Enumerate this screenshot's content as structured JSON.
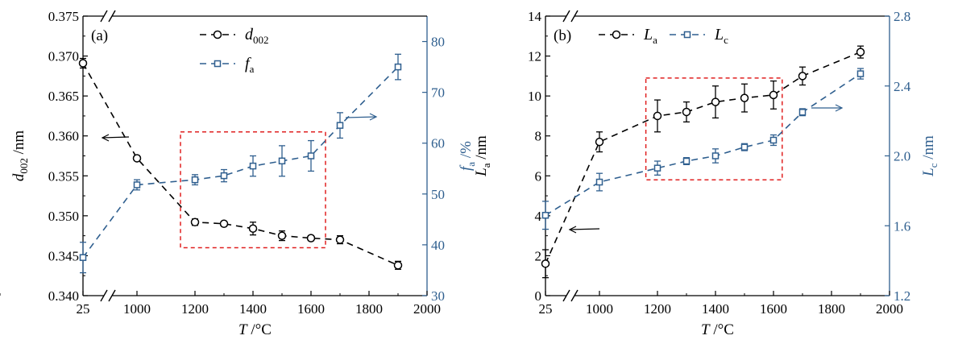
{
  "colors": {
    "left": "#000000",
    "right": "#2f5f8f",
    "box": "#e02020"
  },
  "chart_data": [
    {
      "type": "line",
      "panel_label": "(a)",
      "xlabel": {
        "italic": "T",
        "rest": " /°C"
      },
      "ylabel_left": {
        "italic": "d",
        "sub": "002",
        "rest": " /nm"
      },
      "ylabel_right": {
        "italic": "f",
        "sub": "a",
        "rest": " /%"
      },
      "x_ticks": [
        "25",
        "1000",
        "1200",
        "1400",
        "1600",
        "1800",
        "2000"
      ],
      "y_left_ticks": [
        "0.340",
        "0.345",
        "0.350",
        "0.355",
        "0.360",
        "0.365",
        "0.370",
        "0.375"
      ],
      "y_right_ticks": [
        "30",
        "40",
        "50",
        "60",
        "70",
        "80"
      ],
      "ylim_left": [
        0.34,
        0.375
      ],
      "ylim_right": [
        30,
        85
      ],
      "axis_break": true,
      "legend_position": "top-center",
      "series": [
        {
          "name": {
            "italic": "d",
            "sub": "002"
          },
          "axis": "left",
          "marker": "circle",
          "x": [
            25,
            1000,
            1200,
            1300,
            1400,
            1500,
            1600,
            1700,
            1900
          ],
          "y": [
            0.3691,
            0.3572,
            0.3492,
            0.349,
            0.3484,
            0.3475,
            0.3472,
            0.347,
            0.3438
          ],
          "err": [
            0.0006,
            0.0003,
            0.0004,
            0.0003,
            0.0008,
            0.0006,
            0.0003,
            0.0005,
            0.0005
          ]
        },
        {
          "name": {
            "italic": "f",
            "sub": "a"
          },
          "axis": "right",
          "marker": "square",
          "x": [
            25,
            1000,
            1200,
            1300,
            1400,
            1500,
            1600,
            1700,
            1900
          ],
          "y": [
            37.5,
            51.8,
            52.8,
            53.6,
            55.5,
            56.5,
            57.5,
            63.5,
            75.0
          ],
          "err": [
            3.0,
            1.0,
            1.0,
            1.2,
            2.0,
            3.0,
            3.0,
            2.5,
            2.5
          ]
        }
      ],
      "dashed_box": {
        "x": [
          1150,
          1650
        ],
        "y_left": [
          0.346,
          0.3605
        ]
      }
    },
    {
      "type": "line",
      "panel_label": "(b)",
      "xlabel": {
        "italic": "T",
        "rest": " /°C"
      },
      "ylabel_left": {
        "italic": "L",
        "sub": "a",
        "rest": " /nm"
      },
      "ylabel_right": {
        "italic": "L",
        "sub": "c",
        "rest": " /nm"
      },
      "x_ticks": [
        "25",
        "1000",
        "1200",
        "1400",
        "1600",
        "1800",
        "2000"
      ],
      "y_left_ticks": [
        "0",
        "2",
        "4",
        "6",
        "8",
        "10",
        "12",
        "14"
      ],
      "y_right_ticks": [
        "1.2",
        "1.6",
        "2.0",
        "2.4",
        "2.8"
      ],
      "ylim_left": [
        0,
        14
      ],
      "ylim_right": [
        1.2,
        2.8
      ],
      "axis_break": true,
      "legend_position": "top-left",
      "series": [
        {
          "name": {
            "italic": "L",
            "sub": "a"
          },
          "axis": "left",
          "marker": "circle",
          "x": [
            25,
            1000,
            1200,
            1300,
            1400,
            1500,
            1600,
            1700,
            1900
          ],
          "y": [
            1.6,
            7.7,
            9.0,
            9.2,
            9.7,
            9.9,
            10.05,
            11.0,
            12.2
          ],
          "err": [
            0.7,
            0.5,
            0.8,
            0.5,
            0.8,
            0.7,
            0.7,
            0.45,
            0.3
          ]
        },
        {
          "name": {
            "italic": "L",
            "sub": "c"
          },
          "axis": "right",
          "marker": "square",
          "x": [
            25,
            1000,
            1200,
            1300,
            1400,
            1500,
            1600,
            1700,
            1900
          ],
          "y": [
            1.66,
            1.85,
            1.93,
            1.97,
            2.0,
            2.05,
            2.09,
            2.25,
            2.47
          ],
          "err": [
            0.08,
            0.05,
            0.04,
            0.02,
            0.04,
            0.02,
            0.03,
            0.02,
            0.03
          ]
        }
      ],
      "dashed_box": {
        "x": [
          1160,
          1630
        ],
        "y_left": [
          5.8,
          10.9
        ]
      }
    }
  ]
}
